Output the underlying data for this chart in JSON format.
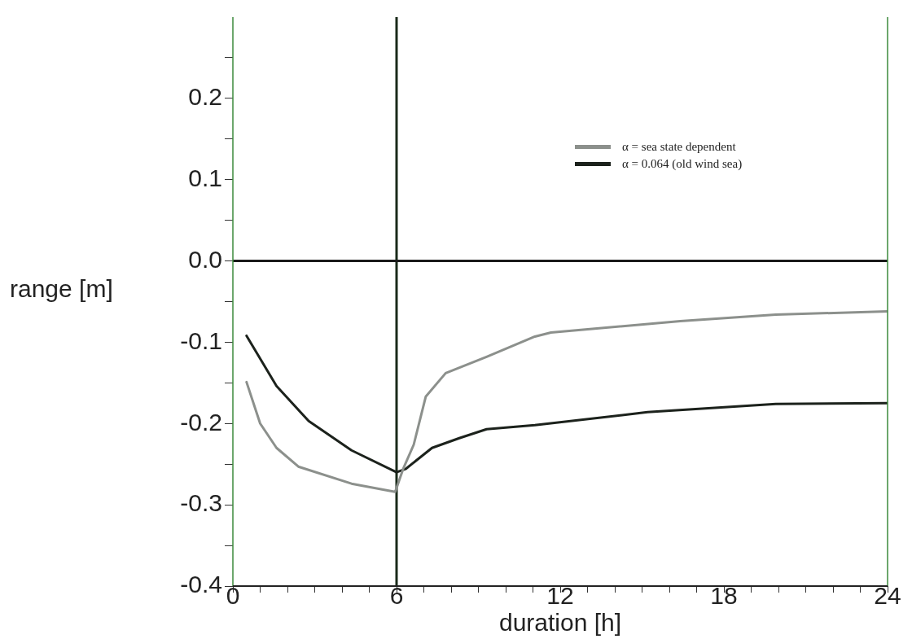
{
  "chart_data": {
    "type": "line",
    "xlabel": "duration [h]",
    "ylabel": "range [m]",
    "xlim": [
      0,
      24
    ],
    "ylim": [
      -0.4,
      0.3
    ],
    "xticks": [
      0,
      {
        "value": 1,
        "label": null
      },
      {
        "value": 2,
        "label": null
      },
      {
        "value": 3,
        "label": null
      },
      {
        "value": 4,
        "label": null
      },
      {
        "value": 5,
        "label": null
      },
      6,
      {
        "value": 7,
        "label": null
      },
      {
        "value": 8,
        "label": null
      },
      {
        "value": 9,
        "label": null
      },
      {
        "value": 10,
        "label": null
      },
      {
        "value": 11,
        "label": null
      },
      12,
      {
        "value": 13,
        "label": null
      },
      {
        "value": 14,
        "label": null
      },
      {
        "value": 15,
        "label": null
      },
      {
        "value": 16,
        "label": null
      },
      {
        "value": 17,
        "label": null
      },
      18,
      {
        "value": 19,
        "label": null
      },
      {
        "value": 20,
        "label": null
      },
      {
        "value": 21,
        "label": null
      },
      {
        "value": 22,
        "label": null
      },
      {
        "value": 23,
        "label": null
      },
      24
    ],
    "yticks": [
      {
        "value": -0.4,
        "label": "-0.4"
      },
      {
        "value": -0.35,
        "label": null
      },
      {
        "value": -0.3,
        "label": "-0.3"
      },
      {
        "value": -0.25,
        "label": null
      },
      {
        "value": -0.2,
        "label": "-0.2"
      },
      {
        "value": -0.15,
        "label": null
      },
      {
        "value": -0.1,
        "label": "-0.1"
      },
      {
        "value": -0.05,
        "label": null
      },
      {
        "value": 0,
        "label": "0.0"
      },
      {
        "value": 0.05,
        "label": null
      },
      {
        "value": 0.1,
        "label": "0.1"
      },
      {
        "value": 0.15,
        "label": null
      },
      {
        "value": 0.2,
        "label": "0.2"
      },
      {
        "value": 0.25,
        "label": null
      }
    ],
    "grid": false,
    "legend": "top right",
    "marker": "none",
    "line_style": "solid",
    "ref_lines": [
      {
        "axis": "x",
        "value": 6,
        "color": "#1a2a1a"
      },
      {
        "axis": "y",
        "value": 0,
        "color": "#1a1a1a"
      }
    ],
    "series": [
      {
        "name": "α = sea state dependent",
        "color": "#8c908c",
        "x": [
          0.5,
          1.0,
          1.6,
          2.4,
          4.35,
          5.95,
          6.24,
          6.63,
          7.07,
          7.8,
          9.3,
          11.07,
          11.66,
          16.4,
          19.9,
          24
        ],
        "values": [
          -0.149,
          -0.2,
          -0.23,
          -0.253,
          -0.274,
          -0.284,
          -0.256,
          -0.226,
          -0.167,
          -0.138,
          -0.118,
          -0.093,
          -0.088,
          -0.074,
          -0.066,
          -0.062
        ]
      },
      {
        "name": "α = 0.064 (old wind sea)",
        "color": "#1c221c",
        "x": [
          0.5,
          1.6,
          2.78,
          4.35,
          6.0,
          6.33,
          7.3,
          8.3,
          9.3,
          11.07,
          15.2,
          19.9,
          24
        ],
        "values": [
          -0.092,
          -0.154,
          -0.197,
          -0.233,
          -0.26,
          -0.256,
          -0.23,
          -0.218,
          -0.207,
          -0.202,
          -0.186,
          -0.176,
          -0.175
        ]
      }
    ]
  }
}
